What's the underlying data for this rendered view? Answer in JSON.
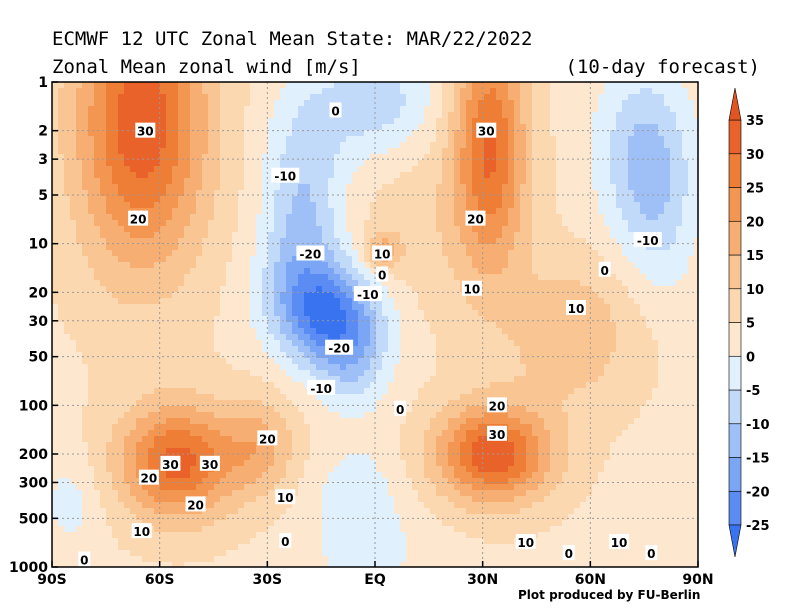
{
  "header": {
    "title_line1": "ECMWF 12 UTC Zonal Mean State: MAR/22/2022",
    "title_line2": "Zonal Mean zonal wind [m/s]",
    "title_right": "(10-day forecast)"
  },
  "footer": {
    "credit": "Plot produced by FU-Berlin"
  },
  "chart_data": {
    "type": "heatmap",
    "subtype": "filled-contour",
    "title": "ECMWF 12 UTC Zonal Mean State: MAR/22/2022",
    "subtitle": "Zonal Mean zonal wind [m/s]",
    "xlabel": "",
    "ylabel": "",
    "x_ticks": [
      "90S",
      "60S",
      "30S",
      "EQ",
      "30N",
      "60N",
      "90N"
    ],
    "x_tick_values": [
      -90,
      -60,
      -30,
      0,
      30,
      60,
      90
    ],
    "y_ticks": [
      "1",
      "2",
      "3",
      "5",
      "10",
      "20",
      "30",
      "50",
      "100",
      "200",
      "300",
      "500",
      "1000"
    ],
    "y_tick_values": [
      1,
      2,
      3,
      5,
      10,
      20,
      30,
      50,
      100,
      200,
      300,
      500,
      1000
    ],
    "y_scale": "log",
    "y_reversed": true,
    "xlim": [
      -90,
      90
    ],
    "ylim": [
      1000,
      1
    ],
    "grid": true,
    "colorbar": {
      "labels": [
        "35",
        "30",
        "25",
        "20",
        "15",
        "10",
        "5",
        "0",
        "-5",
        "-10",
        "-15",
        "-20",
        "-25"
      ],
      "levels": [
        -25,
        -20,
        -15,
        -10,
        -5,
        0,
        5,
        10,
        15,
        20,
        25,
        30,
        35
      ],
      "colors": [
        "#3a73f0",
        "#5a8cf3",
        "#7aa6f5",
        "#9ec0f7",
        "#c1dafa",
        "#e0f0fd",
        "#fde8cf",
        "#fbd8b0",
        "#f9c593",
        "#f6ae72",
        "#f39652",
        "#ee7d36",
        "#e8622a",
        "#e05522"
      ]
    },
    "contour_labels": [
      {
        "text": "30",
        "lat": -64,
        "p": 2.0
      },
      {
        "text": "20",
        "lat": -66,
        "p": 7.0
      },
      {
        "text": "-10",
        "lat": -25,
        "p": 3.8
      },
      {
        "text": "-20",
        "lat": -18,
        "p": 11.5
      },
      {
        "text": "-10",
        "lat": -2,
        "p": 20.5
      },
      {
        "text": "-20",
        "lat": -10,
        "p": 44
      },
      {
        "text": "-10",
        "lat": -15,
        "p": 78
      },
      {
        "text": "0",
        "lat": -11,
        "p": 1.5
      },
      {
        "text": "10",
        "lat": 2,
        "p": 11.5
      },
      {
        "text": "0",
        "lat": 2,
        "p": 15.5
      },
      {
        "text": "30",
        "lat": 31,
        "p": 2.0
      },
      {
        "text": "20",
        "lat": 28,
        "p": 7.0
      },
      {
        "text": "10",
        "lat": 27,
        "p": 19
      },
      {
        "text": "10",
        "lat": 56,
        "p": 25
      },
      {
        "text": "0",
        "lat": 64,
        "p": 14.5
      },
      {
        "text": "-10",
        "lat": 76,
        "p": 9.5
      },
      {
        "text": "20",
        "lat": -30,
        "p": 160
      },
      {
        "text": "30",
        "lat": -57,
        "p": 230
      },
      {
        "text": "30",
        "lat": -46,
        "p": 230
      },
      {
        "text": "20",
        "lat": -63,
        "p": 280
      },
      {
        "text": "20",
        "lat": -50,
        "p": 410
      },
      {
        "text": "10",
        "lat": -25,
        "p": 370
      },
      {
        "text": "10",
        "lat": -65,
        "p": 600
      },
      {
        "text": "0",
        "lat": -81,
        "p": 900
      },
      {
        "text": "0",
        "lat": -25,
        "p": 690
      },
      {
        "text": "0",
        "lat": 7,
        "p": 105
      },
      {
        "text": "20",
        "lat": 34,
        "p": 100
      },
      {
        "text": "30",
        "lat": 34,
        "p": 150
      },
      {
        "text": "10",
        "lat": 42,
        "p": 700
      },
      {
        "text": "10",
        "lat": 68,
        "p": 700
      },
      {
        "text": "0",
        "lat": 54,
        "p": 820
      },
      {
        "text": "0",
        "lat": 77,
        "p": 820
      }
    ]
  }
}
